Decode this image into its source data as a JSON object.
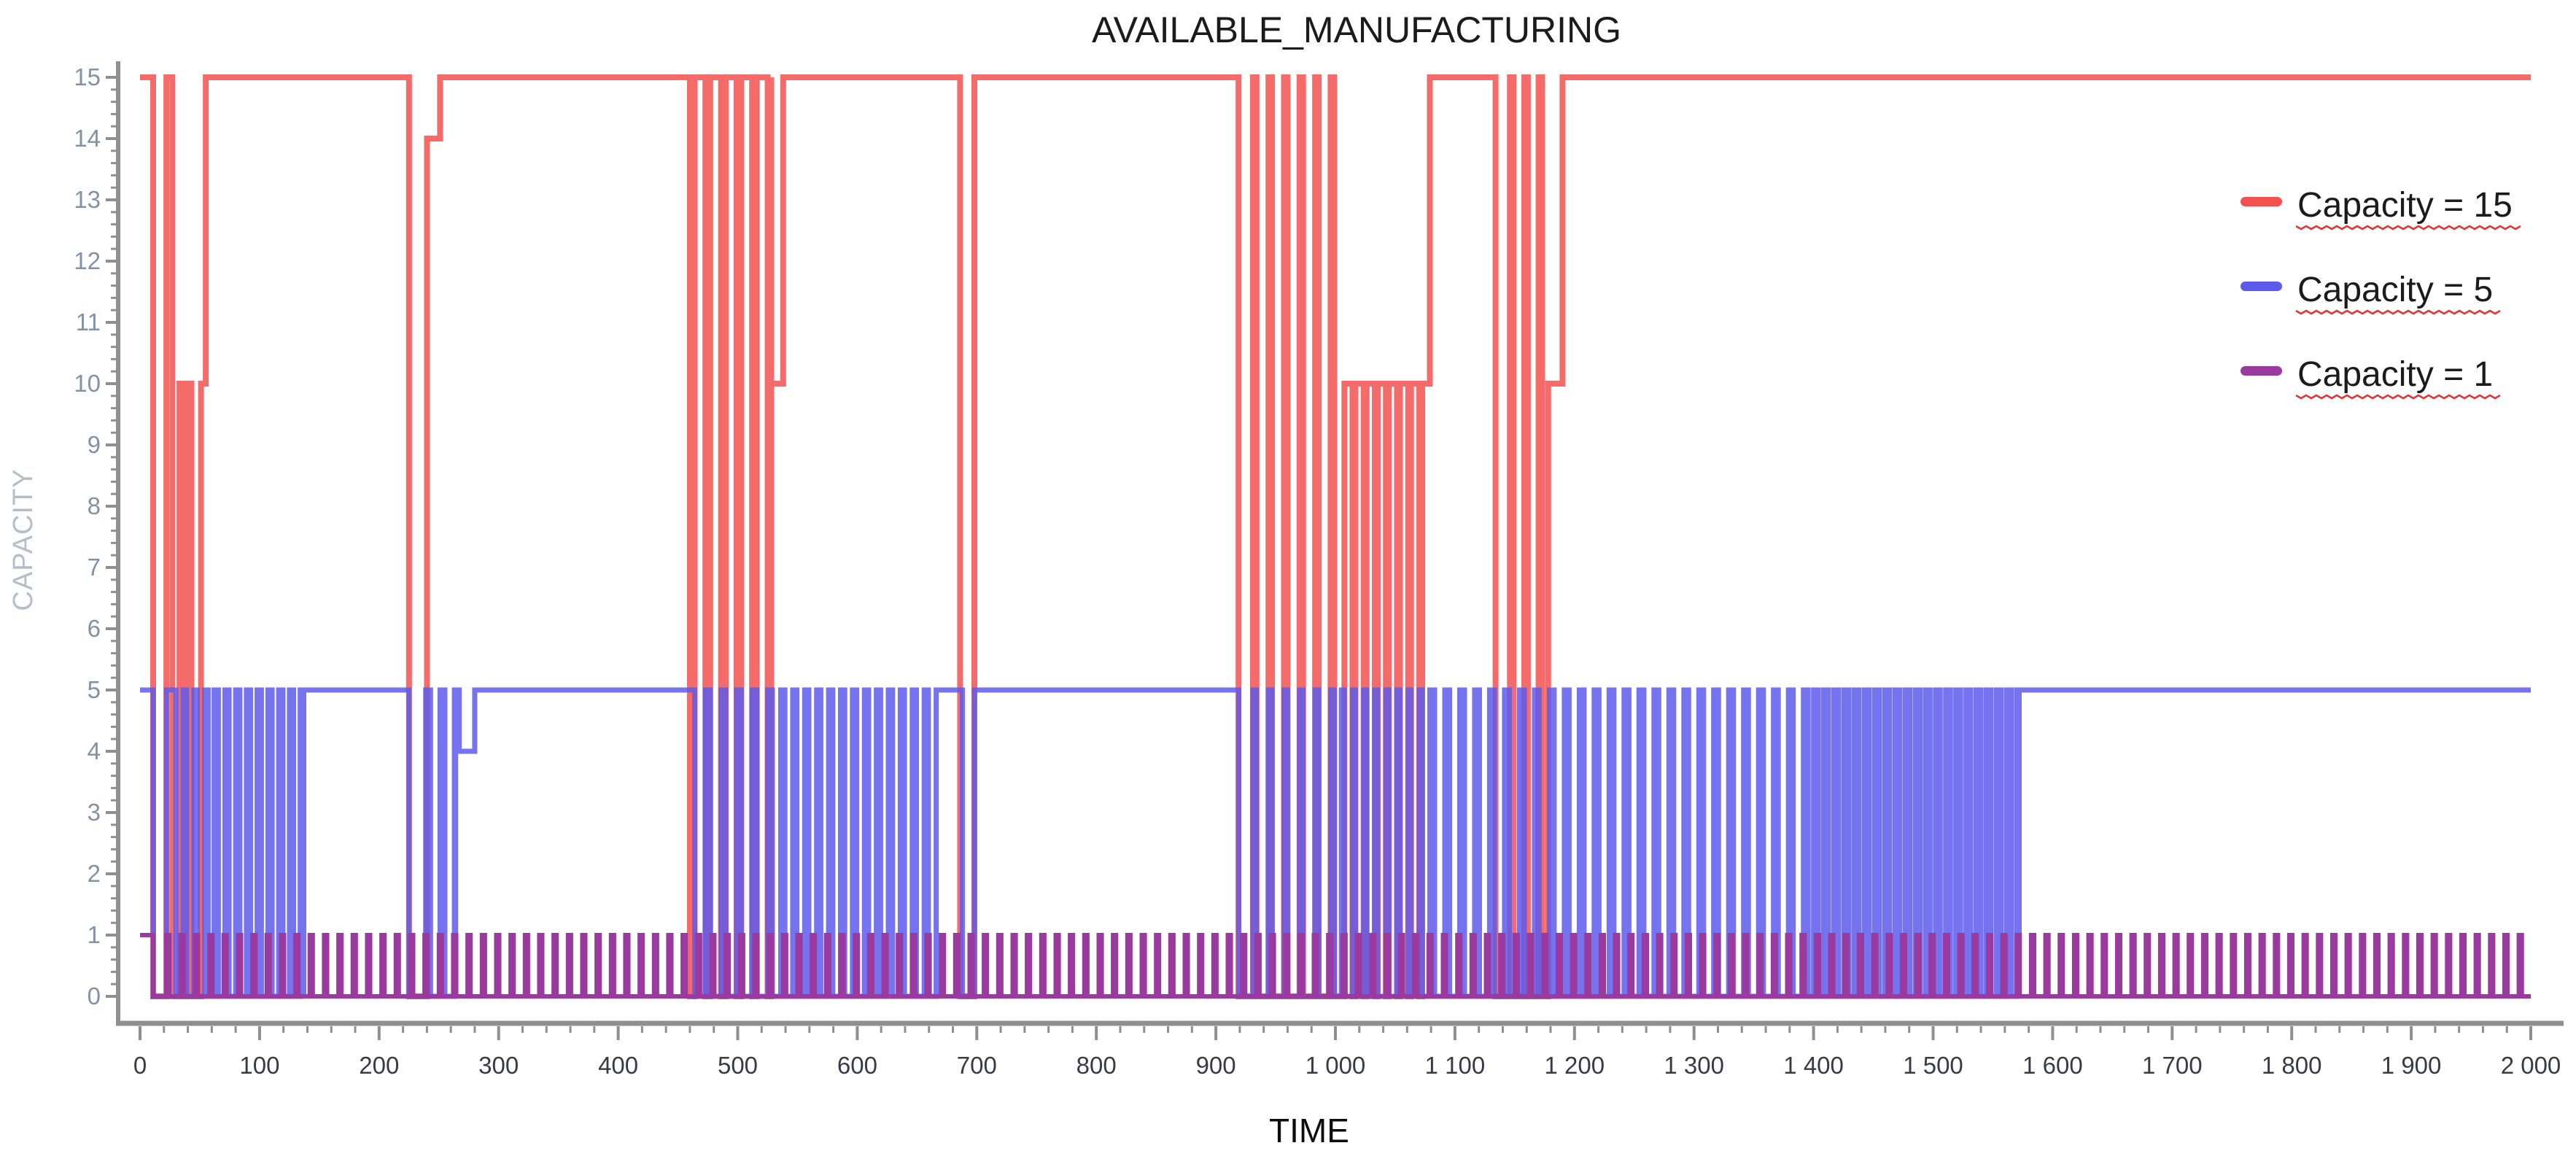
{
  "chart": {
    "title": "AVAILABLE_MANUFACTURING",
    "x_axis": {
      "title": "TIME",
      "min": 0,
      "max": 2000,
      "major_tick_step": 100,
      "minor_tick_step": 20,
      "thousands_separator": " ",
      "tick_labels": [
        "0",
        "100",
        "200",
        "300",
        "400",
        "500",
        "600",
        "700",
        "800",
        "900",
        "1 000",
        "1 100",
        "1 200",
        "1 300",
        "1 400",
        "1 500",
        "1 600",
        "1 700",
        "1 800",
        "1 900",
        "2 000"
      ]
    },
    "y_axis": {
      "title": "CAPACITY",
      "min": 0,
      "max": 15,
      "major_tick_step": 1,
      "minor_tick_step": 0.2,
      "tick_labels": [
        "0",
        "1",
        "2",
        "3",
        "4",
        "5",
        "6",
        "7",
        "8",
        "9",
        "10",
        "11",
        "12",
        "13",
        "14",
        "15"
      ]
    },
    "legend": {
      "position": "top-right",
      "underline_style": "wavy",
      "underline_color": "#e03535",
      "items": [
        {
          "label": "Capacity = 15",
          "color": "#f3514f"
        },
        {
          "label": "Capacity = 5",
          "color": "#5d5aec"
        },
        {
          "label": "Capacity = 1",
          "color": "#9a3a9e"
        }
      ]
    },
    "colors": {
      "title": "#1b1b1b",
      "axis": "#8f8f8f",
      "x_tick_label": "#3a3a46",
      "y_tick_label": "#8291a6",
      "y_axis_title": "#b5bec8",
      "x_axis_title": "#0d0d0d",
      "background": "#ffffff"
    },
    "chart_data": {
      "type": "line-step",
      "title": "AVAILABLE_MANUFACTURING",
      "xlabel": "TIME",
      "ylabel": "CAPACITY",
      "xlim": [
        0,
        2000
      ],
      "ylim": [
        0,
        15
      ],
      "grid": false,
      "legend_position": "top-right",
      "segment_format": "Each segment tiles the time axis. ['c', t0, t1, value] = constant value on [t0,t1). ['t', t0, t1, period, pulse_width, pulse_value, base_value] = repeating pulses: value = pulse_value during the first pulse_width of each period starting at t0, otherwise base_value, until t1.",
      "series": [
        {
          "name": "Capacity = 15",
          "color": "#f3514f",
          "base_level": 15,
          "segments": [
            [
              "c",
              0,
              11,
              15
            ],
            [
              "c",
              11,
              22,
              0
            ],
            [
              "c",
              22,
              27,
              15
            ],
            [
              "c",
              27,
              33,
              0
            ],
            [
              "c",
              33,
              37,
              10
            ],
            [
              "c",
              37,
              39,
              0
            ],
            [
              "c",
              39,
              43,
              10
            ],
            [
              "c",
              43,
              51,
              0
            ],
            [
              "c",
              51,
              55,
              10
            ],
            [
              "c",
              55,
              225,
              15
            ],
            [
              "c",
              225,
              240,
              0
            ],
            [
              "c",
              240,
              251,
              14
            ],
            [
              "c",
              251,
              460,
              15
            ],
            [
              "t",
              460,
              528,
              13,
              4,
              0,
              15
            ],
            [
              "c",
              528,
              538,
              10
            ],
            [
              "c",
              538,
              686,
              15
            ],
            [
              "c",
              686,
              698,
              0
            ],
            [
              "c",
              698,
              919,
              15
            ],
            [
              "c",
              919,
              931,
              0
            ],
            [
              "t",
              931,
              1005,
              13,
              3,
              15,
              0
            ],
            [
              "t",
              1005,
              1079,
              9.3,
              2.5,
              0,
              10
            ],
            [
              "c",
              1079,
              1134,
              15
            ],
            [
              "c",
              1134,
              1146,
              0
            ],
            [
              "t",
              1146,
              1175,
              12,
              3,
              15,
              0
            ],
            [
              "c",
              1175,
              1178,
              0
            ],
            [
              "c",
              1178,
              1190,
              10
            ],
            [
              "c",
              1190,
              2000,
              15
            ]
          ]
        },
        {
          "name": "Capacity = 5",
          "color": "#5d5aec",
          "base_level": 5,
          "segments": [
            [
              "c",
              0,
              11,
              5
            ],
            [
              "c",
              11,
              22,
              0
            ],
            [
              "c",
              22,
              27,
              5
            ],
            [
              "t",
              27,
              62,
              9,
              3,
              5,
              0
            ],
            [
              "t",
              62,
              137,
              9,
              3.5,
              5,
              0
            ],
            [
              "c",
              137,
              225,
              5
            ],
            [
              "c",
              225,
              239,
              0
            ],
            [
              "t",
              239,
              264,
              12,
              4,
              5,
              0
            ],
            [
              "c",
              264,
              267,
              5
            ],
            [
              "c",
              267,
              280,
              4
            ],
            [
              "c",
              280,
              460,
              5
            ],
            [
              "t",
              460,
              536,
              13,
              4,
              5,
              0
            ],
            [
              "t",
              536,
              666,
              10,
              3.5,
              5,
              0
            ],
            [
              "c",
              666,
              688,
              5
            ],
            [
              "c",
              688,
              698,
              0
            ],
            [
              "c",
              698,
              919,
              5
            ],
            [
              "c",
              919,
              931,
              0
            ],
            [
              "t",
              931,
              1005,
              13,
              3,
              5,
              0
            ],
            [
              "t",
              1005,
              1079,
              9.3,
              2.5,
              5,
              0
            ],
            [
              "t",
              1079,
              1400,
              12.5,
              4,
              5,
              0
            ],
            [
              "t",
              1400,
              1572,
              8.5,
              4,
              5,
              0
            ],
            [
              "c",
              1572,
              2000,
              5
            ]
          ]
        },
        {
          "name": "Capacity = 1",
          "color": "#9a3a9e",
          "base_level": 1,
          "segments": [
            [
              "c",
              0,
              11,
              1
            ],
            [
              "c",
              11,
              22,
              0
            ],
            [
              "t",
              22,
              2000,
              12,
              2.5,
              1,
              0
            ]
          ]
        }
      ]
    }
  }
}
